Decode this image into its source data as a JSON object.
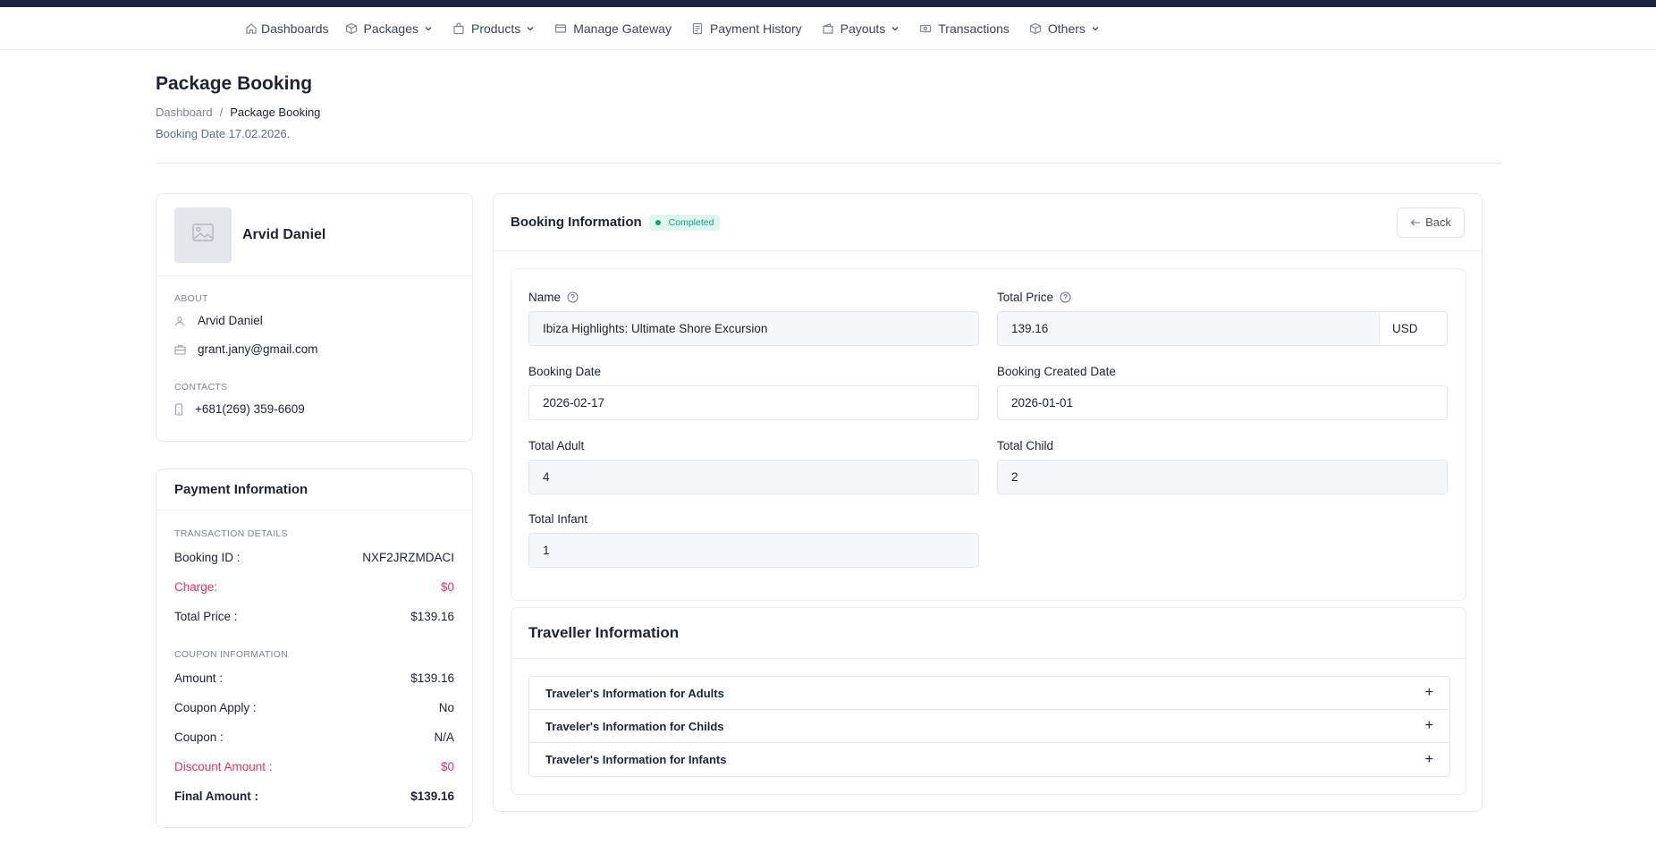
{
  "nav": {
    "items": [
      {
        "label": "Dashboards",
        "icon": "home-icon",
        "dropdown": false
      },
      {
        "label": "Packages",
        "icon": "cube-icon",
        "dropdown": true
      },
      {
        "label": "Products",
        "icon": "bag-icon",
        "dropdown": true
      },
      {
        "label": "Manage Gateway",
        "icon": "card-icon",
        "dropdown": false
      },
      {
        "label": "Payment History",
        "icon": "receipt-icon",
        "dropdown": false
      },
      {
        "label": "Payouts",
        "icon": "wallet-icon",
        "dropdown": true
      },
      {
        "label": "Transactions",
        "icon": "money-icon",
        "dropdown": false
      },
      {
        "label": "Others",
        "icon": "box-icon",
        "dropdown": true
      }
    ]
  },
  "header": {
    "title": "Package Booking",
    "breadcrumb": {
      "home": "Dashboard",
      "separator": "/",
      "current": "Package Booking"
    },
    "booking_date": "Booking Date 17.02.2026."
  },
  "profile": {
    "name": "Arvid Daniel",
    "about_label": "ABOUT",
    "about_name": "Arvid Daniel",
    "email": "grant.jany@gmail.com",
    "contacts_label": "CONTACTS",
    "phone": "+681(269) 359-6609"
  },
  "payment": {
    "title": "Payment Information",
    "transaction_label": "TRANSACTION DETAILS",
    "booking_id_label": "Booking ID :",
    "booking_id": "NXF2JRZMDACI",
    "charge_label": "Charge:",
    "charge": "$0",
    "total_price_label": "Total Price :",
    "total_price": "$139.16",
    "coupon_label": "COUPON INFORMATION",
    "amount_label": "Amount :",
    "amount": "$139.16",
    "coupon_apply_label": "Coupon Apply :",
    "coupon_apply": "No",
    "coupon_label_row": "Coupon :",
    "coupon": "N/A",
    "discount_label": "Discount Amount :",
    "discount": "$0",
    "final_label": "Final Amount :",
    "final": "$139.16"
  },
  "booking": {
    "title": "Booking Information",
    "status": "Completed",
    "back_label": "Back",
    "name_label": "Name",
    "name_value": "Ibiza Highlights: Ultimate Shore Excursion",
    "total_price_label": "Total Price",
    "total_price_value": "139.16",
    "currency": "USD",
    "booking_date_label": "Booking Date",
    "booking_date_value": "2026-02-17",
    "created_date_label": "Booking Created Date",
    "created_date_value": "2026-01-01",
    "total_adult_label": "Total Adult",
    "total_adult_value": "4",
    "total_child_label": "Total Child",
    "total_child_value": "2",
    "total_infant_label": "Total Infant",
    "total_infant_value": "1"
  },
  "traveller": {
    "title": "Traveller Information",
    "items": [
      "Traveler's Information for Adults",
      "Traveler's Information for Childs",
      "Traveler's Information for Infants"
    ],
    "expand_symbol": "+"
  },
  "colors": {
    "topbar": "#1b2540",
    "status_green": "#0fa37a",
    "danger": "#e5365e"
  }
}
